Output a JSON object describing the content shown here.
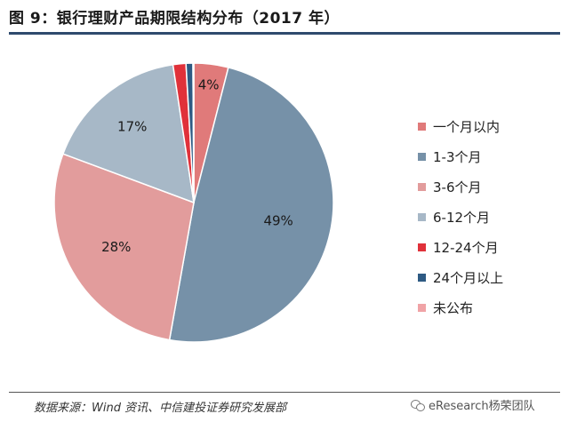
{
  "title": "图 9：银行理财产品期限结构分布（2017 年）",
  "source": "数据来源：Wind 资讯、中信建投证券研究发展部",
  "watermark": "eResearch杨荣团队",
  "chart_data": {
    "type": "pie",
    "title": "",
    "legend_position": "right",
    "categories": [
      "一个月以内",
      "1-3个月",
      "3-6个月",
      "6-12个月",
      "12-24个月",
      "24个月以上",
      "未公布"
    ],
    "values": [
      4,
      49,
      28,
      17,
      1.5,
      0.8,
      0.1
    ],
    "labels": [
      "4%",
      "49%",
      "28%",
      "17%",
      "",
      "",
      ""
    ],
    "colors": [
      "#e07a7a",
      "#7691a8",
      "#e29c9c",
      "#a7b8c7",
      "#e0313a",
      "#2e5a83",
      "#f0a3a6"
    ]
  }
}
